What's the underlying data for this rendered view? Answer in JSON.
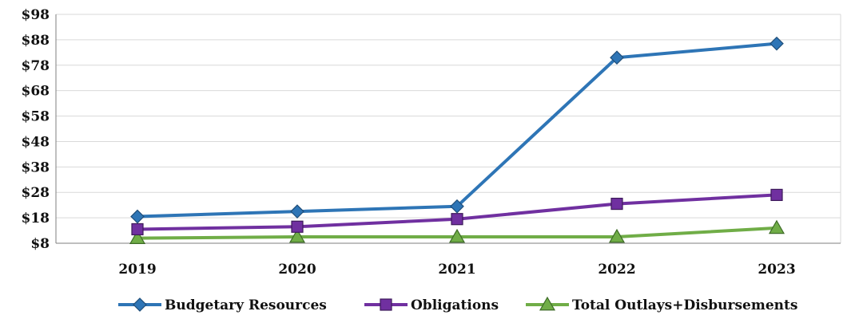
{
  "chart_data": {
    "type": "line",
    "title": "",
    "xlabel": "",
    "ylabel": "",
    "categories": [
      "2019",
      "2020",
      "2021",
      "2022",
      "2023"
    ],
    "y_ticks": [
      "$8",
      "$18",
      "$28",
      "$38",
      "$48",
      "$58",
      "$68",
      "$78",
      "$88",
      "$98"
    ],
    "ylim": [
      8,
      98
    ],
    "grid": "horizontal",
    "legend_position": "bottom",
    "series": [
      {
        "name": "Budgetary Resources",
        "values": [
          18.5,
          20.5,
          22.5,
          81,
          86.5
        ],
        "color": "#2e75b6",
        "marker": "diamond"
      },
      {
        "name": "Obligations",
        "values": [
          13.5,
          14.5,
          17.5,
          23.5,
          27
        ],
        "color": "#7030a0",
        "marker": "square"
      },
      {
        "name": "Total Outlays+Disbursements",
        "values": [
          10,
          10.5,
          10.5,
          10.5,
          14
        ],
        "color": "#70ad47",
        "marker": "triangle"
      }
    ]
  }
}
